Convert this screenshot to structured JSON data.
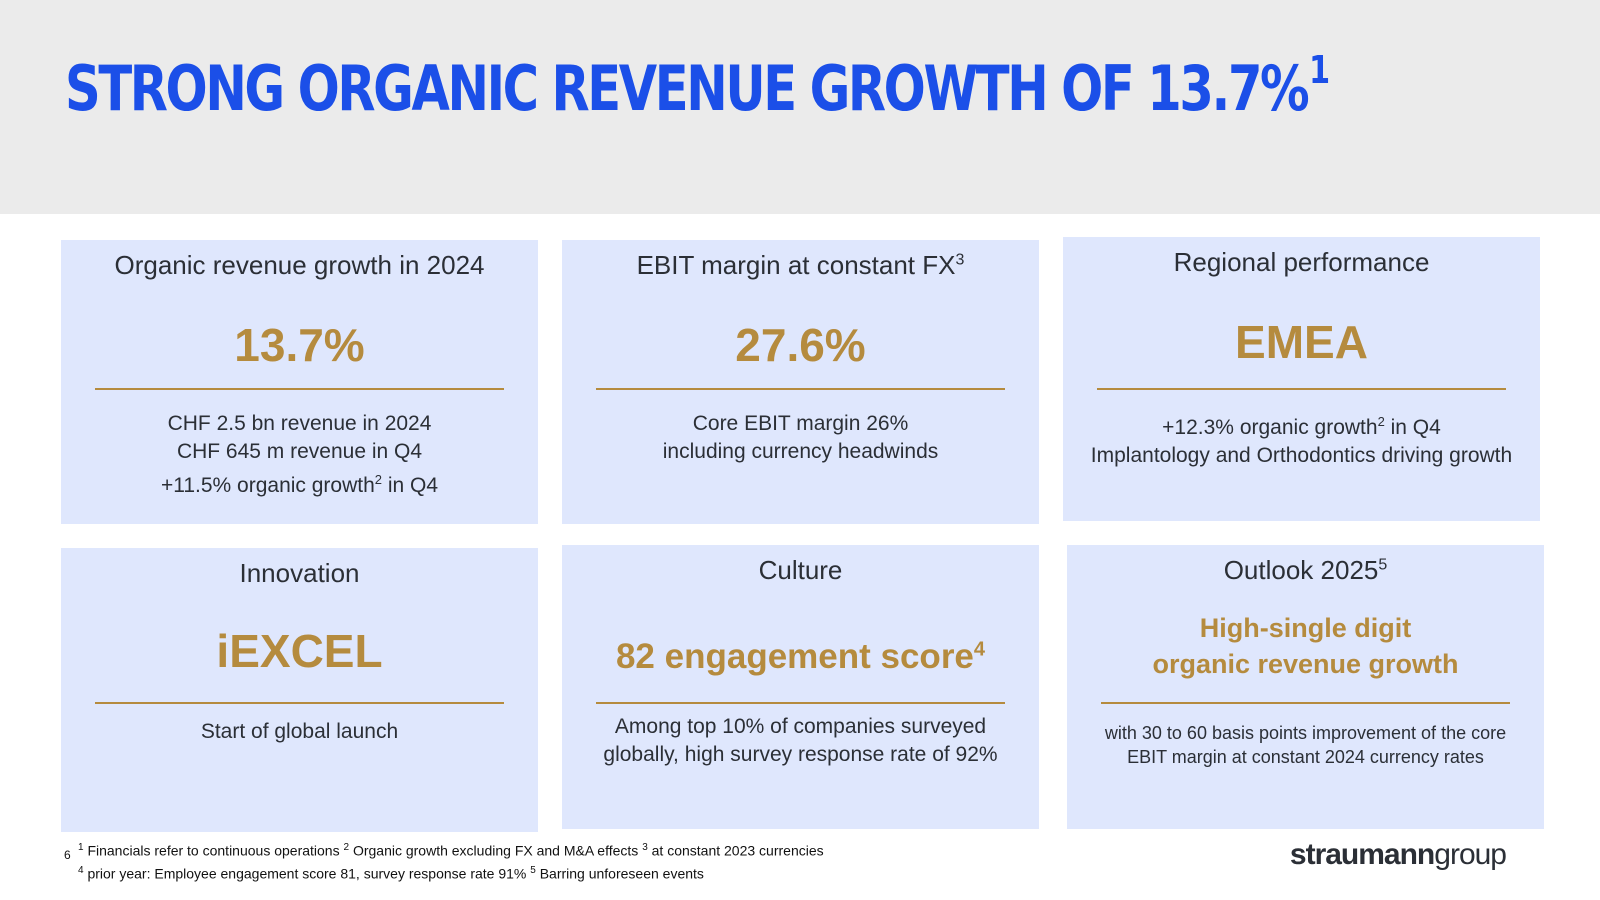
{
  "title": "STRONG ORGANIC REVENUE GROWTH OF 13.7%",
  "title_sup": "1",
  "cards": [
    {
      "title": "Organic revenue growth in 2024",
      "value": "13.7%",
      "body": [
        {
          "text": "CHF 2.5 bn revenue in 2024"
        },
        {
          "text": "CHF 645 m revenue in Q4"
        },
        {
          "text": "+11.5% organic growth",
          "sup": "2",
          "after": " in Q4"
        }
      ]
    },
    {
      "title": "EBIT margin at constant FX",
      "title_sup": "3",
      "value": "27.6%",
      "body": [
        {
          "text": "Core EBIT margin 26%"
        },
        {
          "text": "including currency headwinds"
        }
      ]
    },
    {
      "title": "Regional performance",
      "value": "EMEA",
      "body": [
        {
          "text": "+12.3% organic growth",
          "sup": "2",
          "after": " in Q4"
        },
        {
          "text": "Implantology and Orthodontics driving growth"
        }
      ]
    },
    {
      "title": "Innovation",
      "value": "iEXCEL",
      "body": [
        {
          "text": "Start of global launch"
        }
      ]
    },
    {
      "title": "Culture",
      "value": "82 engagement score",
      "value_sup": "4",
      "body": [
        {
          "text": "Among top 10% of companies surveyed"
        },
        {
          "text": "globally, high survey response rate of 92%"
        }
      ]
    },
    {
      "title": "Outlook 2025",
      "title_sup": "5",
      "value_lines": [
        "High-single digit",
        "organic revenue growth"
      ],
      "body": [
        {
          "text": "with 30 to 60 basis points improvement of the core"
        },
        {
          "text": "EBIT margin at constant 2024 currency rates"
        }
      ]
    }
  ],
  "footnotes": {
    "line1": [
      {
        "sup": "1",
        "text": " Financials refer to continuous operations  "
      },
      {
        "sup": "2",
        "text": " Organic growth excluding FX and M&A effects  "
      },
      {
        "sup": "3",
        "text": " at constant 2023 currencies"
      }
    ],
    "line2": [
      {
        "sup": "4",
        "text": " prior year: Employee engagement score 81, survey response rate 91%  "
      },
      {
        "sup": "5",
        "text": " Barring unforeseen events"
      }
    ]
  },
  "page_number": "6",
  "logo": {
    "bold": "straumann",
    "light": "group"
  }
}
